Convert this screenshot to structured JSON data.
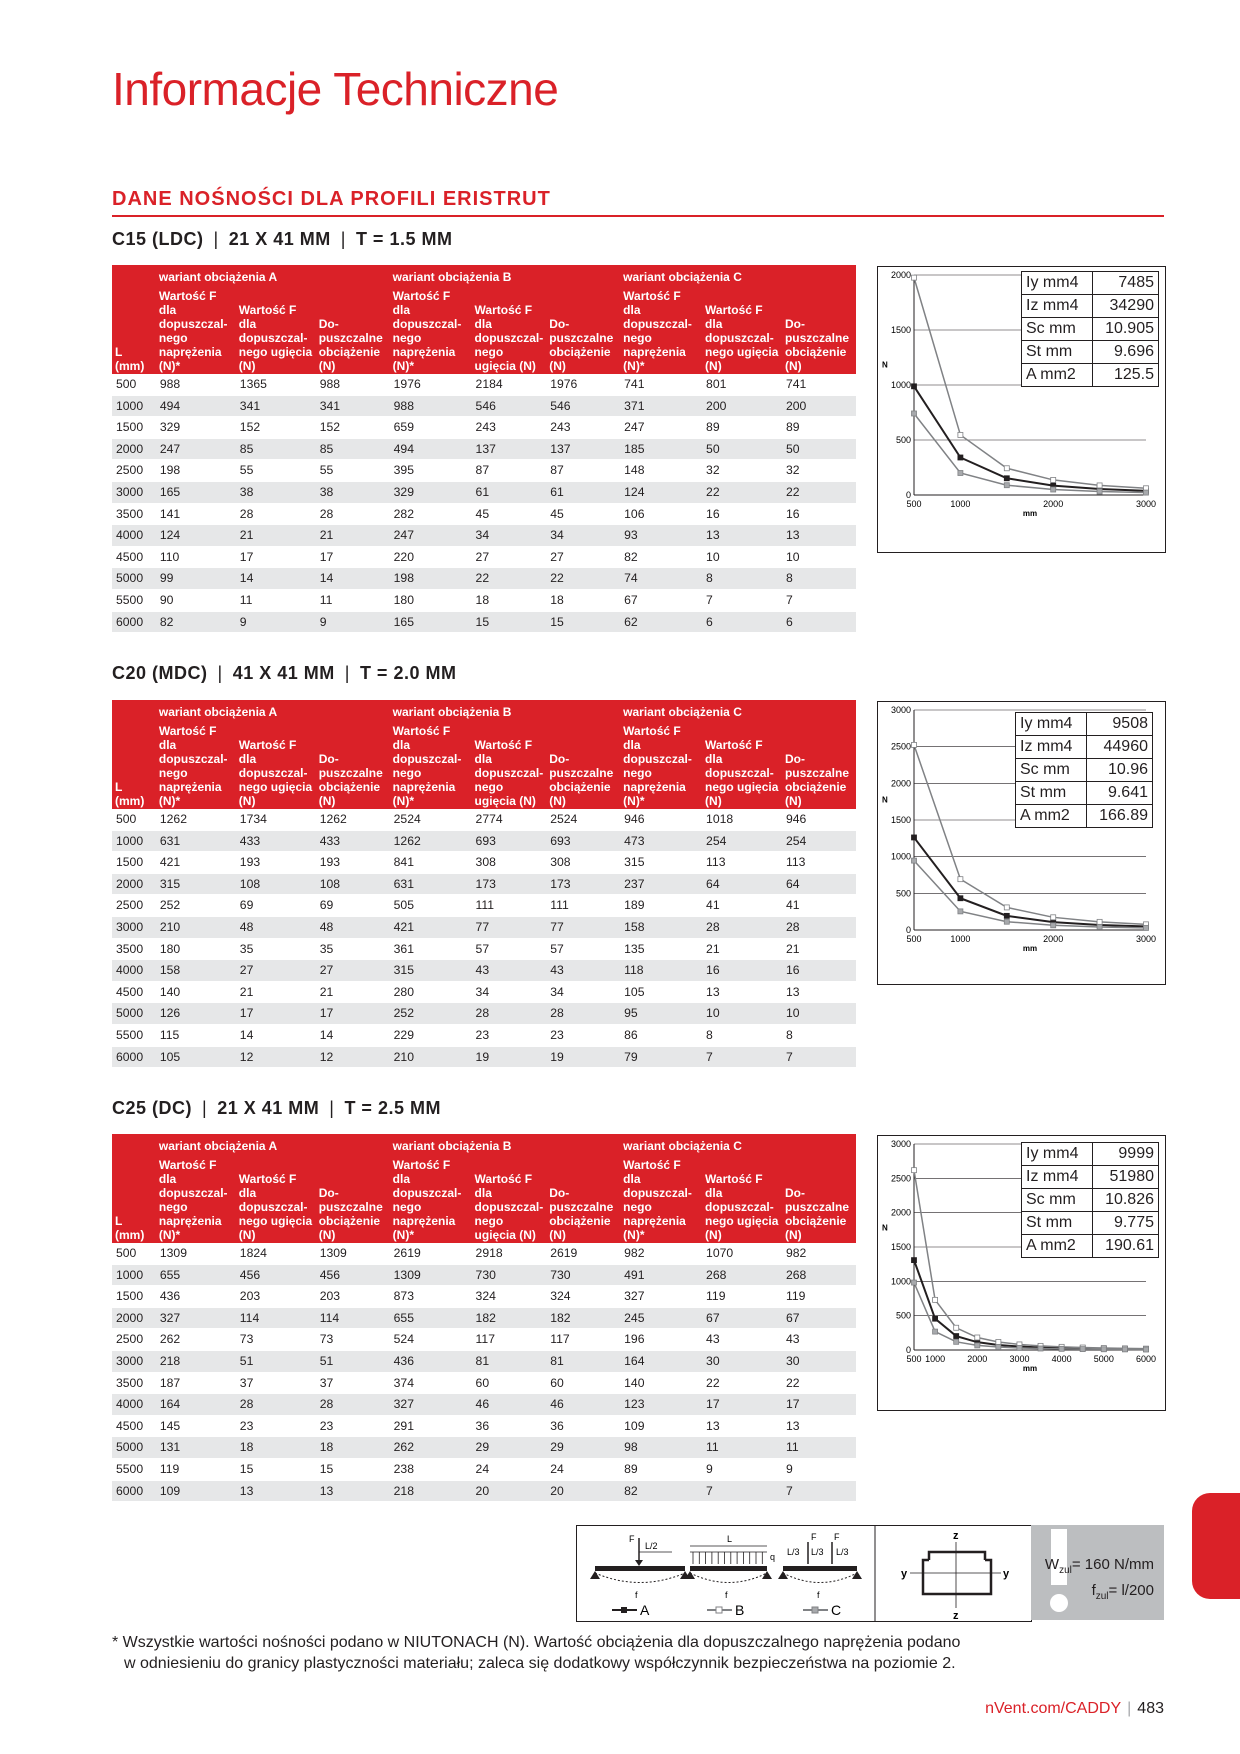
{
  "page_title": "Informacje Techniczne",
  "section_title": "DANE NOŚNOŚCI DLA PROFILI ERISTRUT",
  "header_labels": {
    "variant_a": "wariant obciążenia A",
    "variant_b": "wariant obciążenia B",
    "variant_c": "wariant obciążenia C",
    "col_L": "L (mm)",
    "col_stress": "Wartość F dla dopuszczal-nego naprężenia (N)*",
    "col_deflection": "Wartość F dla dopuszczal-nego ugięcia (N)",
    "col_allowed": "Do-puszczalne obciążenie (N)"
  },
  "blocks": [
    {
      "name": "C15 (LDC)",
      "dims": "21 X 41 MM",
      "thickness": "T = 1.5 MM",
      "rows": [
        [
          "500",
          "988",
          "1365",
          "988",
          "1976",
          "2184",
          "1976",
          "741",
          "801",
          "741"
        ],
        [
          "1000",
          "494",
          "341",
          "341",
          "988",
          "546",
          "546",
          "371",
          "200",
          "200"
        ],
        [
          "1500",
          "329",
          "152",
          "152",
          "659",
          "243",
          "243",
          "247",
          "89",
          "89"
        ],
        [
          "2000",
          "247",
          "85",
          "85",
          "494",
          "137",
          "137",
          "185",
          "50",
          "50"
        ],
        [
          "2500",
          "198",
          "55",
          "55",
          "395",
          "87",
          "87",
          "148",
          "32",
          "32"
        ],
        [
          "3000",
          "165",
          "38",
          "38",
          "329",
          "61",
          "61",
          "124",
          "22",
          "22"
        ],
        [
          "3500",
          "141",
          "28",
          "28",
          "282",
          "45",
          "45",
          "106",
          "16",
          "16"
        ],
        [
          "4000",
          "124",
          "21",
          "21",
          "247",
          "34",
          "34",
          "93",
          "13",
          "13"
        ],
        [
          "4500",
          "110",
          "17",
          "17",
          "220",
          "27",
          "27",
          "82",
          "10",
          "10"
        ],
        [
          "5000",
          "99",
          "14",
          "14",
          "198",
          "22",
          "22",
          "74",
          "8",
          "8"
        ],
        [
          "5500",
          "90",
          "11",
          "11",
          "180",
          "18",
          "18",
          "67",
          "7",
          "7"
        ],
        [
          "6000",
          "82",
          "9",
          "9",
          "165",
          "15",
          "15",
          "62",
          "6",
          "6"
        ]
      ],
      "props": [
        [
          "Iy",
          "mm4",
          "7485"
        ],
        [
          "Iz",
          "mm4",
          "34290"
        ],
        [
          "Sc",
          "mm",
          "10.905"
        ],
        [
          "St",
          "mm",
          "9.696"
        ],
        [
          "A",
          "mm2",
          "125.5"
        ]
      ],
      "chart_data": {
        "type": "line",
        "x": [
          500,
          1000,
          1500,
          2000,
          2500,
          3000
        ],
        "series": [
          {
            "name": "A",
            "values": [
              988,
              341,
              152,
              85,
              55,
              38
            ]
          },
          {
            "name": "B",
            "values": [
              1976,
              546,
              243,
              137,
              87,
              61
            ]
          },
          {
            "name": "C",
            "values": [
              741,
              200,
              89,
              50,
              32,
              22
            ]
          }
        ],
        "xlabel": "mm",
        "ylabel": "N",
        "xticks": [
          "500",
          "1000",
          "2000",
          "3000"
        ],
        "xtick_values": [
          500,
          1000,
          2000,
          3000
        ],
        "yticks": [
          "0",
          "500",
          "1000",
          "1500",
          "2000"
        ],
        "ytick_values": [
          0,
          500,
          1000,
          1500,
          2000
        ],
        "xlim": [
          500,
          3000
        ],
        "ylim": [
          0,
          2000
        ]
      }
    },
    {
      "name": "C20 (MDC)",
      "dims": "41 X 41 MM",
      "thickness": "T = 2.0 MM",
      "rows": [
        [
          "500",
          "1262",
          "1734",
          "1262",
          "2524",
          "2774",
          "2524",
          "946",
          "1018",
          "946"
        ],
        [
          "1000",
          "631",
          "433",
          "433",
          "1262",
          "693",
          "693",
          "473",
          "254",
          "254"
        ],
        [
          "1500",
          "421",
          "193",
          "193",
          "841",
          "308",
          "308",
          "315",
          "113",
          "113"
        ],
        [
          "2000",
          "315",
          "108",
          "108",
          "631",
          "173",
          "173",
          "237",
          "64",
          "64"
        ],
        [
          "2500",
          "252",
          "69",
          "69",
          "505",
          "111",
          "111",
          "189",
          "41",
          "41"
        ],
        [
          "3000",
          "210",
          "48",
          "48",
          "421",
          "77",
          "77",
          "158",
          "28",
          "28"
        ],
        [
          "3500",
          "180",
          "35",
          "35",
          "361",
          "57",
          "57",
          "135",
          "21",
          "21"
        ],
        [
          "4000",
          "158",
          "27",
          "27",
          "315",
          "43",
          "43",
          "118",
          "16",
          "16"
        ],
        [
          "4500",
          "140",
          "21",
          "21",
          "280",
          "34",
          "34",
          "105",
          "13",
          "13"
        ],
        [
          "5000",
          "126",
          "17",
          "17",
          "252",
          "28",
          "28",
          "95",
          "10",
          "10"
        ],
        [
          "5500",
          "115",
          "14",
          "14",
          "229",
          "23",
          "23",
          "86",
          "8",
          "8"
        ],
        [
          "6000",
          "105",
          "12",
          "12",
          "210",
          "19",
          "19",
          "79",
          "7",
          "7"
        ]
      ],
      "props": [
        [
          "Iy mm4",
          "",
          "9508"
        ],
        [
          "Iz mm4",
          "",
          "44960"
        ],
        [
          "Sc mm",
          "",
          "10.96"
        ],
        [
          "St mm",
          "",
          "9.641"
        ],
        [
          "A mm2",
          "",
          "166.89"
        ]
      ],
      "chart_data": {
        "type": "line",
        "x": [
          500,
          1000,
          1500,
          2000,
          2500,
          3000
        ],
        "series": [
          {
            "name": "A",
            "values": [
              1262,
              433,
              193,
              108,
              69,
              48
            ]
          },
          {
            "name": "B",
            "values": [
              2524,
              693,
              308,
              173,
              111,
              77
            ]
          },
          {
            "name": "C",
            "values": [
              946,
              254,
              113,
              64,
              41,
              28
            ]
          }
        ],
        "xlabel": "mm",
        "ylabel": "N",
        "xticks": [
          "500",
          "1000",
          "2000",
          "3000"
        ],
        "xtick_values": [
          500,
          1000,
          2000,
          3000
        ],
        "yticks": [
          "0",
          "500",
          "1000",
          "1500",
          "2000",
          "2500",
          "3000"
        ],
        "ytick_values": [
          0,
          500,
          1000,
          1500,
          2000,
          2500,
          3000
        ],
        "xlim": [
          500,
          3000
        ],
        "ylim": [
          0,
          3000
        ]
      }
    },
    {
      "name": "C25 (DC)",
      "dims": "21 X 41 MM",
      "thickness": "T = 2.5 MM",
      "rows": [
        [
          "500",
          "1309",
          "1824",
          "1309",
          "2619",
          "2918",
          "2619",
          "982",
          "1070",
          "982"
        ],
        [
          "1000",
          "655",
          "456",
          "456",
          "1309",
          "730",
          "730",
          "491",
          "268",
          "268"
        ],
        [
          "1500",
          "436",
          "203",
          "203",
          "873",
          "324",
          "324",
          "327",
          "119",
          "119"
        ],
        [
          "2000",
          "327",
          "114",
          "114",
          "655",
          "182",
          "182",
          "245",
          "67",
          "67"
        ],
        [
          "2500",
          "262",
          "73",
          "73",
          "524",
          "117",
          "117",
          "196",
          "43",
          "43"
        ],
        [
          "3000",
          "218",
          "51",
          "51",
          "436",
          "81",
          "81",
          "164",
          "30",
          "30"
        ],
        [
          "3500",
          "187",
          "37",
          "37",
          "374",
          "60",
          "60",
          "140",
          "22",
          "22"
        ],
        [
          "4000",
          "164",
          "28",
          "28",
          "327",
          "46",
          "46",
          "123",
          "17",
          "17"
        ],
        [
          "4500",
          "145",
          "23",
          "23",
          "291",
          "36",
          "36",
          "109",
          "13",
          "13"
        ],
        [
          "5000",
          "131",
          "18",
          "18",
          "262",
          "29",
          "29",
          "98",
          "11",
          "11"
        ],
        [
          "5500",
          "119",
          "15",
          "15",
          "238",
          "24",
          "24",
          "89",
          "9",
          "9"
        ],
        [
          "6000",
          "109",
          "13",
          "13",
          "218",
          "20",
          "20",
          "82",
          "7",
          "7"
        ]
      ],
      "props": [
        [
          "Iy",
          "mm4",
          "9999"
        ],
        [
          "Iz",
          "mm4",
          "51980"
        ],
        [
          "Sc",
          "mm",
          "10.826"
        ],
        [
          "St",
          "mm",
          "9.775"
        ],
        [
          "A",
          "mm2",
          "190.61"
        ]
      ],
      "chart_data": {
        "type": "line",
        "x": [
          500,
          1000,
          1500,
          2000,
          2500,
          3000,
          3500,
          4000,
          4500,
          5000,
          5500,
          6000
        ],
        "series": [
          {
            "name": "A",
            "values": [
              1309,
              456,
              203,
              114,
              73,
              51,
              37,
              28,
              23,
              18,
              15,
              13
            ]
          },
          {
            "name": "B",
            "values": [
              2619,
              730,
              324,
              182,
              117,
              81,
              60,
              46,
              36,
              29,
              24,
              20
            ]
          },
          {
            "name": "C",
            "values": [
              982,
              268,
              119,
              67,
              43,
              30,
              22,
              17,
              13,
              11,
              9,
              7
            ]
          }
        ],
        "xlabel": "mm",
        "ylabel": "N",
        "xticks": [
          "500",
          "1000",
          "2000",
          "3000",
          "4000",
          "5000",
          "6000"
        ],
        "xtick_values": [
          500,
          1000,
          2000,
          3000,
          4000,
          5000,
          6000
        ],
        "yticks": [
          "0",
          "500",
          "1000",
          "1500",
          "2000",
          "2500",
          "3000"
        ],
        "ytick_values": [
          0,
          500,
          1000,
          1500,
          2000,
          2500,
          3000
        ],
        "xlim": [
          500,
          6000
        ],
        "ylim": [
          0,
          3000
        ]
      }
    }
  ],
  "diagram": {
    "label_f": "F",
    "label_l2": "L/2",
    "label_l": "L",
    "label_q": "q",
    "label_l3": "L/3",
    "label_small_f": "f",
    "legend": [
      "A",
      "B",
      "C"
    ]
  },
  "profile_axes": {
    "z": "z",
    "y": "y"
  },
  "limits": {
    "w_line": "W",
    "w_sub": "zul",
    "w_val": "= 160 N/mm",
    "f_line": "f",
    "f_sub": "zul",
    "f_val": "= l/200"
  },
  "footnote": {
    "line1": "* Wszystkie wartości nośności podano w NIUTONACH (N). Wartość obciążenia dla dopuszczalnego naprężenia podano",
    "line2": "w odniesieniu do granicy plastyczności materiału; zaleca się dodatkowy współczynnik bezpieczeństwa na poziomie 2."
  },
  "page_footer": {
    "site": "nVent.com/CADDY",
    "page": "483"
  },
  "colors": {
    "accent": "#da2128",
    "row_alt": "#e6e7e8",
    "text": "#231f20",
    "series_a": "#231f20",
    "series_b": "#808285",
    "series_c": "#808285"
  }
}
